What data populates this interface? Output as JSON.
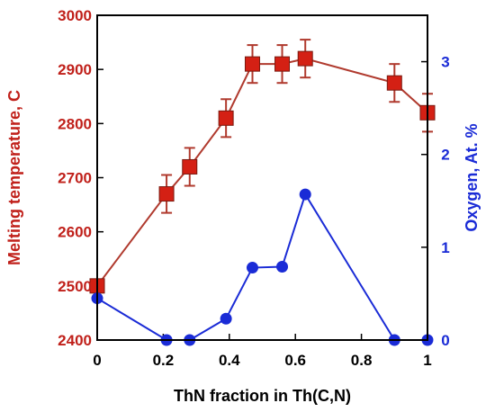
{
  "chart_data": {
    "type": "line",
    "xlabel": "ThN fraction in Th(C,N)",
    "xlim": [
      0,
      1
    ],
    "x_ticks": [
      "0",
      "0.2",
      "0.4",
      "0.6",
      "0.8",
      "1"
    ],
    "x_tick_values": [
      0,
      0.2,
      0.4,
      0.6,
      0.8,
      1
    ],
    "y_left": {
      "label": "Melting temperature, C",
      "lim": [
        2400,
        3000
      ],
      "ticks": [
        "2400",
        "2500",
        "2600",
        "2700",
        "2800",
        "2900",
        "3000"
      ],
      "tick_values": [
        2400,
        2500,
        2600,
        2700,
        2800,
        2900,
        3000
      ],
      "color": "#c0201a"
    },
    "y_right": {
      "label": "Oxygen, At. %",
      "lim": [
        0,
        3.5
      ],
      "ticks": [
        "0",
        "1",
        "2",
        "3"
      ],
      "tick_values": [
        0,
        1,
        2,
        3
      ],
      "color": "#1a2bd6"
    },
    "series": [
      {
        "axis": "left",
        "marker": "square",
        "color": "#d42014",
        "line_color": "#b03a2e",
        "points": [
          {
            "x": 0,
            "y": 2500,
            "err": 0
          },
          {
            "x": 0.21,
            "y": 2670,
            "err": 35
          },
          {
            "x": 0.28,
            "y": 2720,
            "err": 35
          },
          {
            "x": 0.39,
            "y": 2810,
            "err": 35
          },
          {
            "x": 0.47,
            "y": 2910,
            "err": 35
          },
          {
            "x": 0.56,
            "y": 2910,
            "err": 35
          },
          {
            "x": 0.63,
            "y": 2920,
            "err": 35
          },
          {
            "x": 0.9,
            "y": 2875,
            "err": 35
          },
          {
            "x": 1,
            "y": 2820,
            "err": 35
          }
        ]
      },
      {
        "axis": "right",
        "marker": "circle",
        "color": "#1a2bd6",
        "points": [
          {
            "x": 0,
            "y": 0.45
          },
          {
            "x": 0.21,
            "y": 0
          },
          {
            "x": 0.28,
            "y": 0
          },
          {
            "x": 0.39,
            "y": 0.23
          },
          {
            "x": 0.47,
            "y": 0.78
          },
          {
            "x": 0.56,
            "y": 0.79
          },
          {
            "x": 0.63,
            "y": 1.57
          },
          {
            "x": 0.9,
            "y": 0
          },
          {
            "x": 1,
            "y": 0
          }
        ]
      }
    ]
  }
}
